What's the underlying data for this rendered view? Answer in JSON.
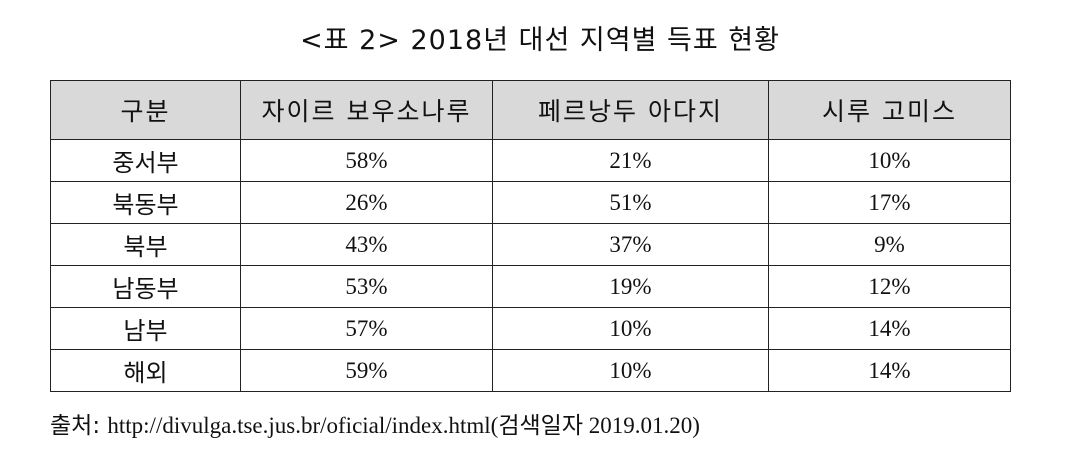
{
  "title": "<표 2> 2018년 대선 지역별 득표 현황",
  "table": {
    "headers": [
      "구분",
      "자이르 보우소나루",
      "페르낭두 아다지",
      "시루 고미스"
    ],
    "rows": [
      {
        "region": "중서부",
        "values": [
          "58%",
          "21%",
          "10%"
        ]
      },
      {
        "region": "북동부",
        "values": [
          "26%",
          "51%",
          "17%"
        ]
      },
      {
        "region": "북부",
        "values": [
          "43%",
          "37%",
          "9%"
        ]
      },
      {
        "region": "남동부",
        "values": [
          "53%",
          "19%",
          "12%"
        ]
      },
      {
        "region": "남부",
        "values": [
          "57%",
          "10%",
          "14%"
        ]
      },
      {
        "region": "해외",
        "values": [
          "59%",
          "10%",
          "14%"
        ]
      }
    ]
  },
  "source": {
    "label": "출처:",
    "text": "http://divulga.tse.jus.br/oficial/index.html(검색일자 2019.01.20)"
  }
}
